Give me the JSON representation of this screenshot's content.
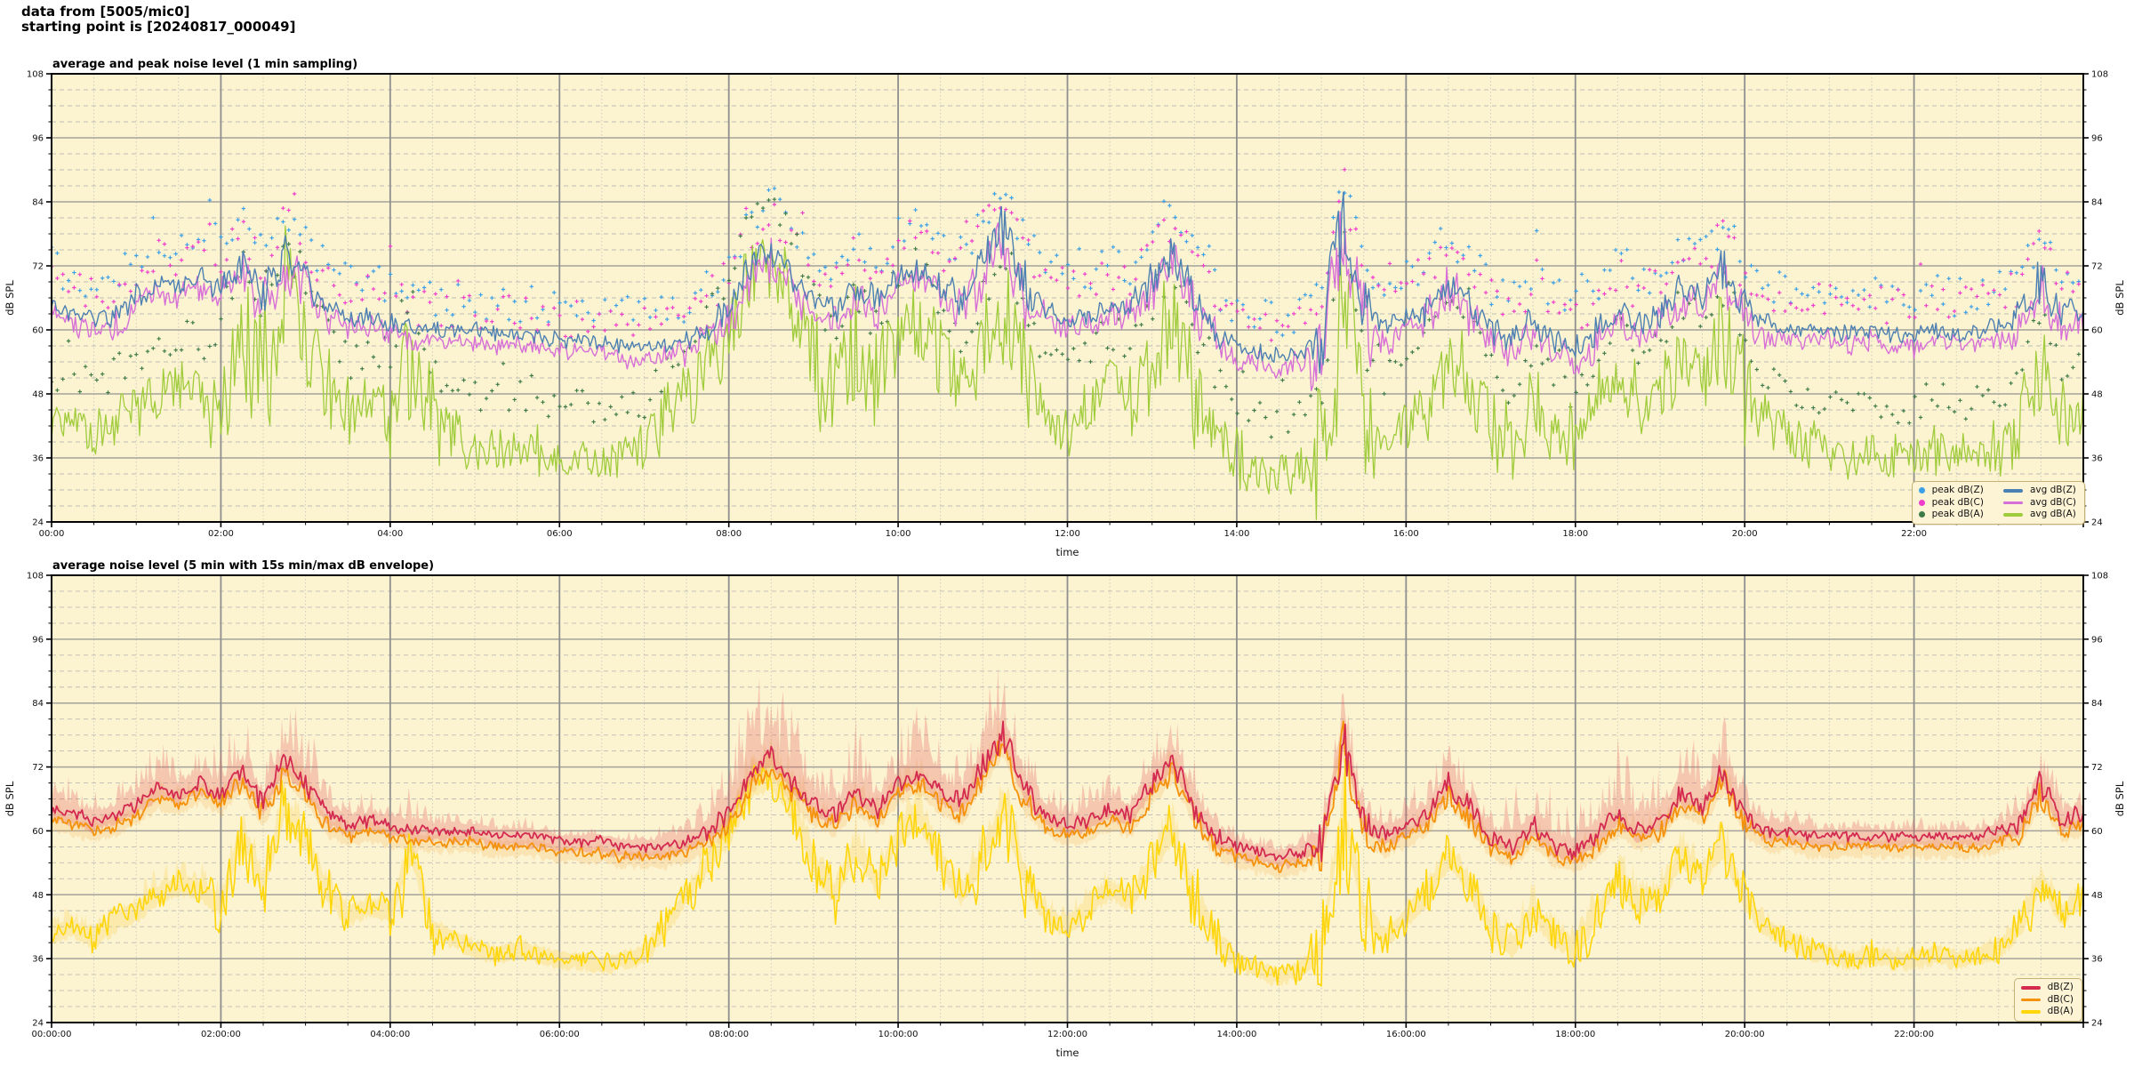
{
  "header": {
    "line1": "data from [5005/mic0]",
    "line2": "starting point is [20240817_000049]"
  },
  "figure": {
    "page_bg": "#ffffff",
    "plot_bg": "#fcf3d0",
    "spine_color": "#000000",
    "grid_major_h": "#a3a39b",
    "grid_major_v": "#8f8f8f",
    "grid_minor_h": "#bcbcb4",
    "grid_minor_v": "#c9c9bf",
    "text_color": "#111111",
    "legend_bg": "#fdf4d6",
    "legend_border": "#c5b277"
  },
  "chart_data": [
    {
      "type": "line+scatter",
      "title": "average and peak noise level (1 min sampling)",
      "xlabel": "time",
      "ylabel": "dB SPL",
      "ylabel_right": "dB SPL",
      "ylim": [
        24,
        108
      ],
      "ytick_step": 12,
      "yminor_step": 3,
      "xlim_hours": [
        0,
        24
      ],
      "xtick_step_hours": 2,
      "xminor_step_hours": 0.5,
      "xtick_format": "HH:MM",
      "anchor_step_hours": 0.25,
      "grid": true,
      "legend_loc": "lower right",
      "legend_columns": 2,
      "series": [
        {
          "name": "peak dB(Z)",
          "kind": "scatter",
          "color": "#3aa0e8",
          "values": [
            72,
            70,
            68,
            70,
            73,
            76,
            75,
            78,
            76,
            80,
            74,
            82,
            78,
            71,
            69,
            70,
            68,
            66,
            66,
            66,
            66,
            65,
            65,
            65,
            64,
            64,
            64,
            63,
            63,
            64,
            65,
            68,
            72,
            80,
            84,
            78,
            74,
            72,
            76,
            73,
            78,
            80,
            76,
            74,
            81,
            88,
            76,
            72,
            70,
            71,
            73,
            72,
            78,
            82,
            74,
            68,
            64,
            63,
            62,
            63,
            66,
            90,
            72,
            68,
            70,
            72,
            78,
            73,
            68,
            65,
            70,
            66,
            64,
            68,
            72,
            69,
            71,
            76,
            74,
            80,
            72,
            69,
            68,
            68,
            67,
            66,
            67,
            66,
            66,
            67,
            66,
            67,
            68,
            70,
            78,
            71,
            72
          ]
        },
        {
          "name": "peak dB(C)",
          "kind": "scatter",
          "color": "#ef3ccd",
          "values": [
            70,
            68,
            66,
            68,
            71,
            74,
            73,
            76,
            74,
            78,
            72,
            80,
            76,
            69,
            67,
            68,
            66,
            64,
            64,
            64,
            64,
            63,
            63,
            63,
            62,
            62,
            62,
            61,
            61,
            62,
            63,
            66,
            70,
            78,
            82,
            76,
            72,
            70,
            74,
            71,
            76,
            78,
            74,
            72,
            79,
            86,
            74,
            70,
            68,
            69,
            71,
            70,
            76,
            80,
            72,
            66,
            62,
            61,
            60,
            61,
            64,
            88,
            70,
            66,
            68,
            70,
            76,
            71,
            66,
            63,
            68,
            64,
            62,
            66,
            70,
            67,
            69,
            74,
            72,
            78,
            70,
            67,
            66,
            66,
            65,
            64,
            65,
            64,
            64,
            65,
            64,
            65,
            66,
            68,
            76,
            69,
            70
          ]
        },
        {
          "name": "peak dB(A)",
          "kind": "scatter",
          "color": "#3e7b49",
          "values": [
            50,
            51,
            49,
            52,
            54,
            57,
            59,
            58,
            56,
            72,
            60,
            76,
            70,
            60,
            54,
            56,
            55,
            68,
            52,
            50,
            48,
            47,
            48,
            47,
            46,
            46,
            45,
            46,
            47,
            52,
            58,
            65,
            70,
            80,
            84,
            76,
            66,
            58,
            68,
            60,
            70,
            74,
            65,
            58,
            66,
            76,
            62,
            54,
            52,
            56,
            60,
            57,
            65,
            72,
            58,
            50,
            46,
            44,
            43,
            44,
            48,
            78,
            55,
            50,
            54,
            58,
            66,
            60,
            52,
            48,
            56,
            50,
            48,
            54,
            62,
            56,
            58,
            66,
            62,
            68,
            57,
            52,
            50,
            48,
            47,
            46,
            47,
            46,
            46,
            47,
            46,
            47,
            48,
            52,
            62,
            54,
            56
          ]
        },
        {
          "name": "avg dB(Z)",
          "kind": "line",
          "color": "#4d80b2",
          "width": 1.4,
          "rough": 1.2,
          "act_mul": 0.45,
          "values": [
            65,
            63,
            62,
            63,
            66,
            69,
            68,
            70,
            68,
            72,
            66,
            74,
            70,
            64,
            62,
            63,
            62,
            60,
            60,
            60,
            60,
            59,
            59,
            59,
            58,
            58,
            58,
            57,
            57,
            57,
            58,
            60,
            64,
            72,
            75,
            70,
            66,
            64,
            68,
            65,
            70,
            72,
            68,
            66,
            73,
            79,
            68,
            64,
            62,
            63,
            65,
            64,
            70,
            74,
            66,
            60,
            57,
            56,
            55,
            56,
            58,
            82,
            64,
            60,
            62,
            64,
            70,
            65,
            60,
            57,
            62,
            58,
            56,
            60,
            64,
            61,
            63,
            68,
            66,
            72,
            64,
            61,
            60,
            60,
            60,
            59,
            60,
            59,
            59,
            60,
            59,
            60,
            60,
            62,
            70,
            63,
            64
          ]
        },
        {
          "name": "avg dB(C)",
          "kind": "line",
          "color": "#d76fd8",
          "width": 1.4,
          "rough": 1.5,
          "act_mul": 0.55,
          "values": [
            63,
            61,
            60,
            61,
            64,
            67,
            66,
            68,
            66,
            70,
            64,
            72,
            68,
            62,
            60,
            61,
            60,
            58,
            58,
            58,
            58,
            57,
            57,
            57,
            56,
            56,
            56,
            55,
            55,
            55,
            56,
            58,
            62,
            70,
            73,
            68,
            64,
            62,
            66,
            63,
            68,
            70,
            66,
            64,
            71,
            77,
            66,
            62,
            60,
            61,
            63,
            62,
            68,
            72,
            64,
            58,
            55,
            54,
            53,
            54,
            56,
            81,
            62,
            58,
            60,
            62,
            68,
            63,
            58,
            55,
            60,
            56,
            54,
            58,
            62,
            59,
            61,
            66,
            64,
            70,
            62,
            59,
            58,
            58,
            58,
            57,
            58,
            57,
            57,
            58,
            57,
            58,
            58,
            60,
            68,
            61,
            62
          ]
        },
        {
          "name": "avg dB(A)",
          "kind": "line",
          "color": "#a0cc3c",
          "width": 1.3,
          "rough": 3.2,
          "act_mul": 0.9,
          "values": [
            41,
            42,
            40,
            43,
            45,
            48,
            50,
            49,
            46,
            62,
            50,
            66,
            60,
            50,
            44,
            46,
            45,
            58,
            42,
            40,
            38,
            37,
            38,
            37,
            36,
            36,
            35,
            36,
            37,
            42,
            48,
            55,
            60,
            70,
            72,
            65,
            55,
            48,
            58,
            50,
            60,
            64,
            55,
            48,
            56,
            66,
            52,
            44,
            42,
            46,
            50,
            47,
            55,
            62,
            48,
            40,
            36,
            34,
            33,
            34,
            38,
            64,
            45,
            40,
            44,
            48,
            56,
            50,
            42,
            38,
            46,
            40,
            38,
            44,
            52,
            46,
            48,
            56,
            52,
            58,
            47,
            42,
            40,
            38,
            37,
            36,
            37,
            36,
            36,
            37,
            36,
            37,
            38,
            42,
            52,
            44,
            46
          ]
        }
      ]
    },
    {
      "type": "line",
      "title": "average noise level (5 min with 15s min/max dB envelope)",
      "xlabel": "time",
      "ylabel": "dB SPL",
      "ylabel_right": "dB SPL",
      "ylim": [
        24,
        108
      ],
      "ytick_step": 12,
      "yminor_step": 3,
      "xlim_hours": [
        0,
        24
      ],
      "xtick_step_hours": 2,
      "xminor_step_hours": 0.5,
      "xtick_format": "HH:MM:SS",
      "anchor_step_hours": 0.25,
      "grid": true,
      "legend_loc": "lower right",
      "legend_columns": 1,
      "envelope_amp": [
        8,
        6,
        5,
        6,
        8,
        10,
        9,
        10,
        10,
        14,
        10,
        14,
        12,
        8,
        6,
        6,
        5,
        8,
        4,
        3,
        3,
        3,
        3,
        3,
        2,
        2,
        2,
        2,
        3,
        4,
        6,
        8,
        12,
        18,
        20,
        16,
        12,
        10,
        14,
        10,
        12,
        14,
        10,
        10,
        14,
        18,
        10,
        8,
        6,
        8,
        8,
        7,
        10,
        14,
        8,
        5,
        3,
        3,
        2,
        3,
        5,
        16,
        6,
        5,
        6,
        8,
        10,
        8,
        6,
        10,
        12,
        10,
        10,
        12,
        14,
        12,
        10,
        12,
        10,
        12,
        7,
        5,
        4,
        4,
        3,
        3,
        3,
        3,
        3,
        3,
        3,
        3,
        4,
        6,
        10,
        6,
        6
      ],
      "series": [
        {
          "name": "dB(Z)",
          "kind": "line",
          "color": "#d42a50",
          "width": 1.8,
          "rough": 0.8,
          "act_mul": 0.3,
          "envelope": {
            "color": "rgba(228,98,98,0.30)",
            "amp_scale": 1.0
          },
          "values": [
            64,
            63,
            62,
            63,
            65,
            68,
            67,
            69,
            67,
            71,
            65,
            73,
            69,
            63,
            61,
            62,
            61,
            60,
            60,
            60,
            60,
            59,
            59,
            59,
            58,
            58,
            58,
            57,
            57,
            57,
            58,
            60,
            63,
            71,
            74,
            69,
            65,
            63,
            67,
            64,
            69,
            71,
            67,
            65,
            72,
            78,
            67,
            63,
            61,
            62,
            64,
            63,
            69,
            73,
            65,
            59,
            57,
            56,
            55,
            56,
            58,
            78,
            62,
            59,
            61,
            63,
            69,
            64,
            59,
            57,
            61,
            57,
            56,
            59,
            63,
            60,
            62,
            67,
            65,
            71,
            63,
            60,
            60,
            59,
            59,
            59,
            59,
            59,
            59,
            59,
            59,
            59,
            60,
            61,
            69,
            62,
            63
          ]
        },
        {
          "name": "dB(C)",
          "kind": "line",
          "color": "#f5920a",
          "width": 1.8,
          "rough": 0.8,
          "act_mul": 0.28,
          "envelope": {
            "color": "rgba(246,170,70,0.20)",
            "amp_scale": 0.4
          },
          "values": [
            62,
            61,
            60,
            61,
            63,
            66,
            65,
            67,
            65,
            69,
            63,
            71,
            67,
            61,
            59,
            60,
            59,
            58,
            58,
            58,
            58,
            57,
            57,
            57,
            56,
            56,
            56,
            55,
            55,
            55,
            56,
            58,
            61,
            69,
            72,
            67,
            63,
            61,
            65,
            62,
            67,
            69,
            65,
            63,
            70,
            76,
            65,
            61,
            59,
            60,
            62,
            61,
            67,
            71,
            63,
            57,
            55,
            54,
            53,
            54,
            56,
            76,
            60,
            57,
            59,
            61,
            67,
            62,
            57,
            55,
            59,
            55,
            54,
            57,
            61,
            58,
            60,
            65,
            63,
            69,
            61,
            58,
            58,
            57,
            57,
            57,
            57,
            57,
            57,
            57,
            57,
            57,
            58,
            59,
            67,
            60,
            61
          ]
        },
        {
          "name": "dB(A)",
          "kind": "line",
          "color": "#ffd60a",
          "width": 1.6,
          "rough": 1.5,
          "act_mul": 0.55,
          "envelope": {
            "color": "rgba(250,215,90,0.30)",
            "amp_scale": 0.5
          },
          "values": [
            41,
            42,
            40,
            43,
            45,
            48,
            50,
            49,
            46,
            60,
            50,
            64,
            58,
            49,
            44,
            46,
            45,
            56,
            42,
            40,
            38,
            37,
            38,
            37,
            36,
            36,
            35,
            36,
            37,
            42,
            48,
            54,
            59,
            68,
            70,
            64,
            54,
            48,
            57,
            50,
            59,
            63,
            54,
            48,
            55,
            64,
            51,
            44,
            42,
            46,
            49,
            47,
            54,
            60,
            47,
            40,
            36,
            34,
            33,
            34,
            38,
            64,
            45,
            40,
            44,
            48,
            55,
            50,
            42,
            38,
            45,
            40,
            38,
            44,
            51,
            46,
            48,
            55,
            52,
            57,
            47,
            42,
            40,
            38,
            37,
            36,
            37,
            36,
            36,
            37,
            36,
            37,
            38,
            42,
            51,
            44,
            48
          ]
        }
      ]
    }
  ]
}
